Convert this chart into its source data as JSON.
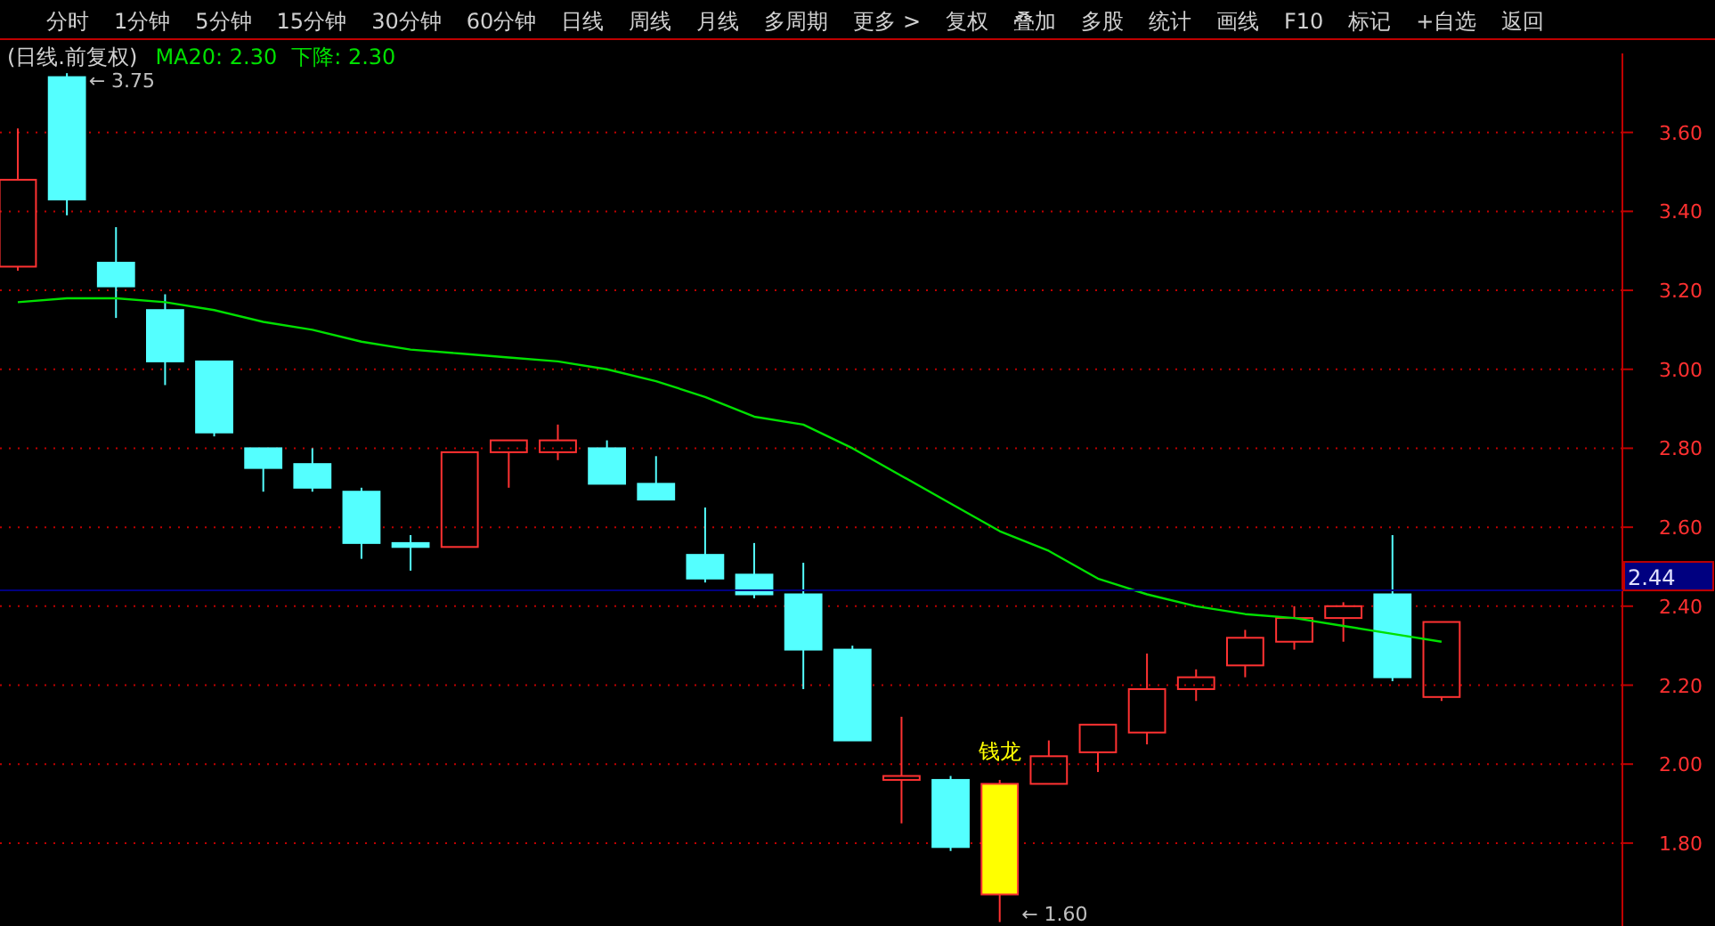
{
  "chart_data": {
    "type": "candlestick",
    "title": "(日线.前复权)",
    "subtitle": "下降: 2.30",
    "categories": [
      null,
      null,
      null,
      null,
      null,
      null,
      null,
      null,
      null,
      null,
      null,
      null,
      null,
      null,
      null,
      null,
      null,
      null,
      null,
      null,
      null,
      null,
      null,
      null,
      null,
      null,
      null,
      null,
      null,
      null
    ],
    "ohlc": [
      [
        3.26,
        3.61,
        3.25,
        3.48
      ],
      [
        3.74,
        3.75,
        3.39,
        3.43
      ],
      [
        3.27,
        3.36,
        3.13,
        3.21
      ],
      [
        3.15,
        3.19,
        2.96,
        3.02
      ],
      [
        3.02,
        3.02,
        2.83,
        2.84
      ],
      [
        2.8,
        2.8,
        2.69,
        2.75
      ],
      [
        2.76,
        2.8,
        2.69,
        2.7
      ],
      [
        2.69,
        2.7,
        2.52,
        2.56
      ],
      [
        2.56,
        2.58,
        2.49,
        2.55
      ],
      [
        2.55,
        2.79,
        2.55,
        2.79
      ],
      [
        2.79,
        2.82,
        2.7,
        2.82
      ],
      [
        2.79,
        2.86,
        2.77,
        2.82
      ],
      [
        2.8,
        2.82,
        2.71,
        2.71
      ],
      [
        2.71,
        2.78,
        2.67,
        2.67
      ],
      [
        2.53,
        2.65,
        2.46,
        2.47
      ],
      [
        2.48,
        2.56,
        2.42,
        2.43
      ],
      [
        2.43,
        2.51,
        2.19,
        2.29
      ],
      [
        2.29,
        2.3,
        2.06,
        2.06
      ],
      [
        1.96,
        2.12,
        1.85,
        1.97
      ],
      [
        1.96,
        1.97,
        1.78,
        1.79
      ],
      [
        1.67,
        1.96,
        1.6,
        1.95
      ],
      [
        1.95,
        2.06,
        1.95,
        2.02
      ],
      [
        2.03,
        2.1,
        1.98,
        2.1
      ],
      [
        2.08,
        2.28,
        2.05,
        2.19
      ],
      [
        2.19,
        2.24,
        2.16,
        2.22
      ],
      [
        2.25,
        2.34,
        2.22,
        2.32
      ],
      [
        2.31,
        2.4,
        2.29,
        2.37
      ],
      [
        2.37,
        2.41,
        2.31,
        2.4
      ],
      [
        2.43,
        2.58,
        2.21,
        2.22
      ],
      [
        2.17,
        2.36,
        2.16,
        2.36
      ]
    ],
    "colors": [
      null,
      null,
      null,
      null,
      null,
      null,
      null,
      null,
      null,
      null,
      null,
      null,
      null,
      null,
      null,
      null,
      null,
      null,
      null,
      null,
      "#ffff00",
      null,
      null,
      null,
      null,
      null,
      null,
      null,
      null,
      null
    ],
    "series": [
      {
        "type": "line",
        "name": "MA20: 2.30",
        "color": "#00e000",
        "values": [
          3.17,
          3.18,
          3.18,
          3.17,
          3.15,
          3.12,
          3.1,
          3.07,
          3.05,
          3.04,
          3.03,
          3.02,
          3.0,
          2.97,
          2.93,
          2.88,
          2.86,
          2.8,
          2.73,
          2.66,
          2.59,
          2.54,
          2.47,
          2.43,
          2.4,
          2.38,
          2.37,
          2.35,
          2.33,
          2.31
        ]
      }
    ],
    "ylim": [
      1.59,
      3.8
    ],
    "yticks": [
      {
        "value": 1.8,
        "label": "1.80"
      },
      {
        "value": 2.0,
        "label": "2.00"
      },
      {
        "value": 2.2,
        "label": "2.20"
      },
      {
        "value": 2.4,
        "label": "2.40"
      },
      {
        "value": 2.6,
        "label": "2.60"
      },
      {
        "value": 2.8,
        "label": "2.80"
      },
      {
        "value": 3.0,
        "label": "3.00"
      },
      {
        "value": 3.2,
        "label": "3.20"
      },
      {
        "value": 3.4,
        "label": "3.40"
      },
      {
        "value": 3.6,
        "label": "3.60"
      }
    ],
    "grid": "y",
    "ref_lines": [
      {
        "axis": "y",
        "value": 2.44,
        "label": "2.44",
        "color": "#000080"
      }
    ],
    "annotations": [
      "分时",
      "1分钟",
      "5分钟",
      "15分钟",
      "30分钟",
      "60分钟",
      "日线",
      "周线",
      "月线",
      "多周期",
      "更多 >",
      "复权",
      "叠加",
      "多股",
      "统计",
      "画线",
      "F10",
      "标记",
      "+自选",
      "返回",
      "← 3.75",
      "← 1.60",
      {
        "text": "钱龙",
        "y": 1.96
      }
    ]
  }
}
